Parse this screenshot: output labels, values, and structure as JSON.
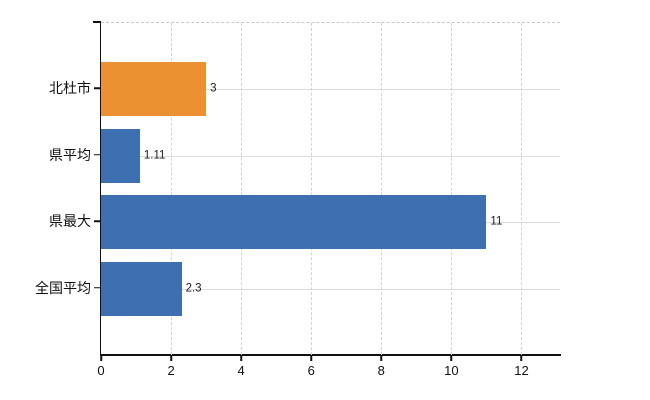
{
  "chart_data": {
    "type": "bar",
    "orientation": "horizontal",
    "title": "",
    "xlabel": "",
    "ylabel": "",
    "categories": [
      "北杜市",
      "県平均",
      "県最大",
      "全国平均"
    ],
    "values": [
      3,
      1.11,
      11,
      2.3
    ],
    "value_labels": [
      "3",
      "1.11",
      "11",
      "2.3"
    ],
    "bar_colors": [
      "#EC9132",
      "#3E6FB0",
      "#3E6FB0",
      "#3E6FB0"
    ],
    "xlim": [
      0,
      13.1
    ],
    "xticks": [
      0,
      2,
      4,
      6,
      8,
      10,
      12
    ],
    "xtick_labels": [
      "0",
      "2",
      "4",
      "6",
      "8",
      "10",
      "12"
    ],
    "grid": "on",
    "gridline_style": {
      "vertical": "dashed",
      "horizontal": "solid"
    },
    "legend": "none"
  },
  "colors": {
    "background": "#FFFFFF",
    "bar_orange": "#EC9132",
    "bar_blue": "#3E6FB0",
    "gridline": "#D9DDD9",
    "axis": "#111111",
    "text": "#111111"
  }
}
